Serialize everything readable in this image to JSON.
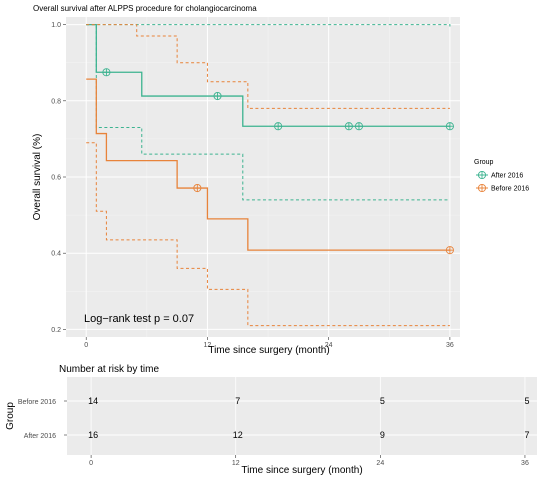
{
  "chart_data": [
    {
      "type": "line",
      "subtype": "kaplan-meier",
      "title": "Overall survival after ALPPS procedure for cholangiocarcinoma",
      "xlabel": "Time since surgery (month)",
      "ylabel": "Overall survival (%)",
      "xlim": [
        -2,
        37
      ],
      "ylim": [
        0.18,
        1.02
      ],
      "x_ticks": [
        0,
        12,
        24,
        36
      ],
      "y_ticks": [
        0.2,
        0.4,
        0.6,
        0.8,
        1.0
      ],
      "y_tick_labels": [
        "0.2",
        "0.4",
        "0.6",
        "0.8",
        "1.0"
      ],
      "grid": true,
      "legend": {
        "title": "Group",
        "placement": "right"
      },
      "annotation": "Log−rank test  p  =  0.07",
      "series": [
        {
          "name": "After 2016",
          "color": "#3cb390",
          "steps": [
            [
              0,
              1.0
            ],
            [
              1,
              0.875
            ],
            [
              5.5,
              0.8125
            ],
            [
              15.5,
              0.7333
            ],
            [
              36,
              0.7333
            ]
          ],
          "upper": [
            [
              0,
              1.0
            ],
            [
              36,
              0.995
            ]
          ],
          "lower": [
            [
              0,
              1.0
            ],
            [
              1,
              0.73
            ],
            [
              5.5,
              0.66
            ],
            [
              15.5,
              0.54
            ],
            [
              36,
              0.54
            ]
          ],
          "censored": [
            [
              2,
              0.875
            ],
            [
              13,
              0.8125
            ],
            [
              19,
              0.7333
            ],
            [
              26,
              0.7333
            ],
            [
              27,
              0.7333
            ],
            [
              36,
              0.7333
            ]
          ]
        },
        {
          "name": "Before 2016",
          "color": "#e8833a",
          "steps": [
            [
              0,
              0.857
            ],
            [
              1,
              0.714
            ],
            [
              2,
              0.643
            ],
            [
              9,
              0.571
            ],
            [
              12,
              0.49
            ],
            [
              16,
              0.408
            ],
            [
              36,
              0.408
            ]
          ],
          "upper": [
            [
              0,
              1.0
            ],
            [
              5,
              0.97
            ],
            [
              9,
              0.9
            ],
            [
              12,
              0.85
            ],
            [
              16,
              0.78
            ],
            [
              36,
              0.78
            ]
          ],
          "lower": [
            [
              0,
              0.69
            ],
            [
              1,
              0.51
            ],
            [
              2,
              0.435
            ],
            [
              9,
              0.36
            ],
            [
              12,
              0.305
            ],
            [
              16,
              0.21
            ],
            [
              36,
              0.21
            ]
          ],
          "censored": [
            [
              11,
              0.571
            ],
            [
              36,
              0.408
            ]
          ]
        }
      ]
    },
    {
      "type": "table",
      "title": "Number at risk by time",
      "xlabel": "Time since surgery (month)",
      "ylabel": "Group",
      "xlim": [
        -2,
        37
      ],
      "x_ticks": [
        0,
        12,
        24,
        36
      ],
      "rows": [
        {
          "name": "Before 2016",
          "values": [
            14,
            7,
            5,
            5
          ]
        },
        {
          "name": "After 2016",
          "values": [
            16,
            12,
            9,
            7
          ]
        }
      ]
    }
  ]
}
